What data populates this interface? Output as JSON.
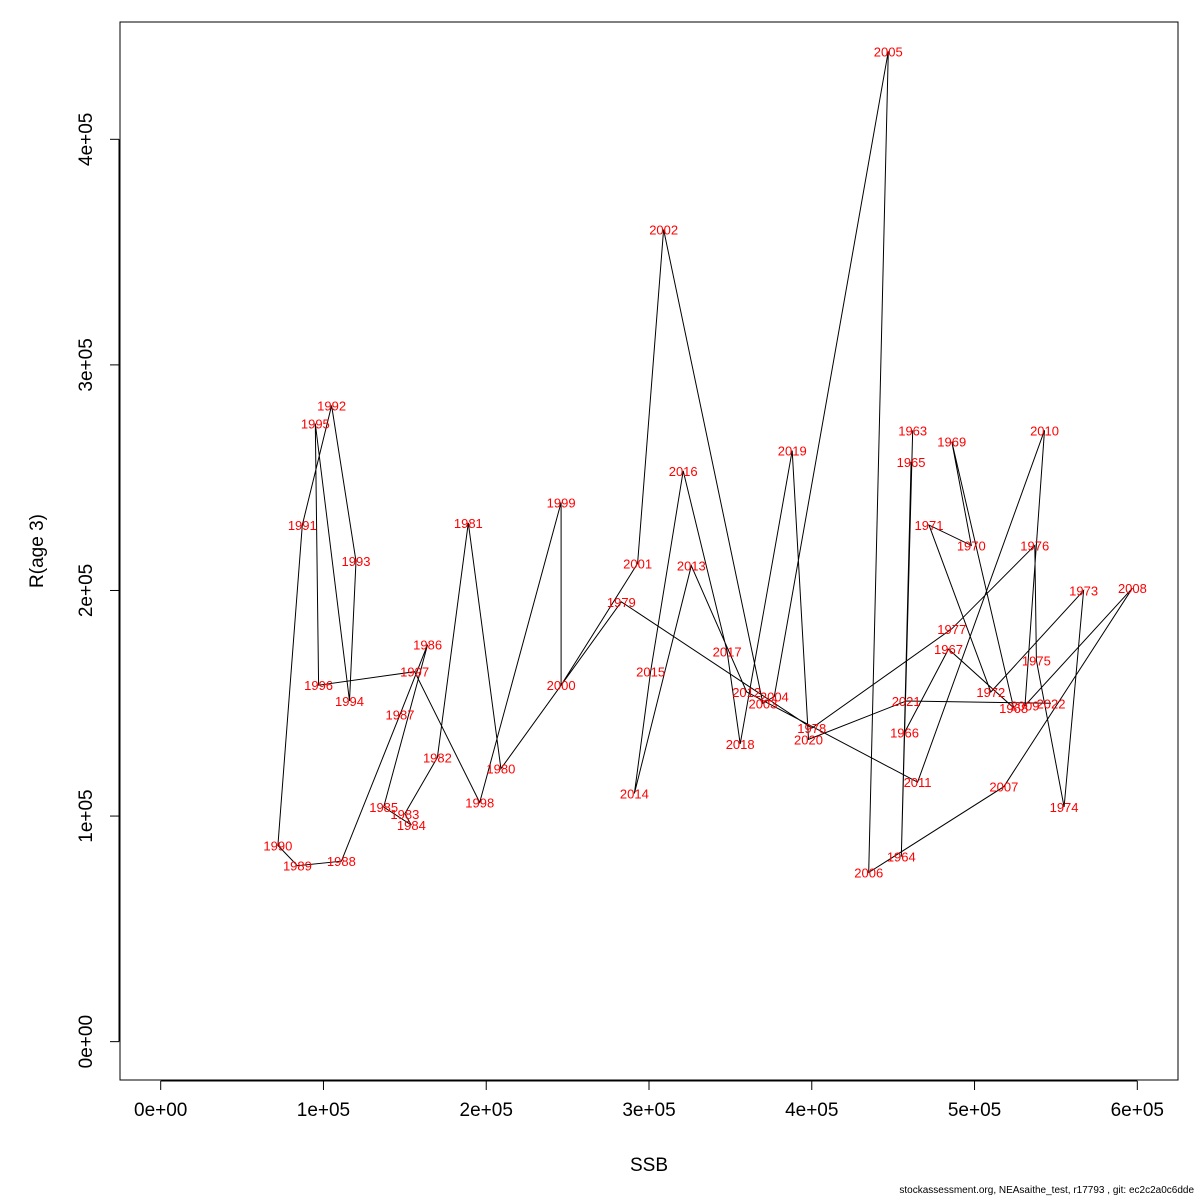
{
  "chart_data": {
    "type": "line",
    "xlabel": "SSB",
    "ylabel": "R(age 3)",
    "xlim": [
      -25000,
      625000
    ],
    "ylim": [
      -17000,
      452000
    ],
    "x_ticks": [
      0,
      100000,
      200000,
      300000,
      400000,
      500000,
      600000
    ],
    "x_tick_labels": [
      "0e+00",
      "1e+05",
      "2e+05",
      "3e+05",
      "4e+05",
      "5e+05",
      "6e+05"
    ],
    "y_ticks": [
      0,
      100000,
      200000,
      300000,
      400000
    ],
    "y_tick_labels": [
      "0e+00",
      "1e+05",
      "2e+05",
      "3e+05",
      "4e+05"
    ],
    "grid": false,
    "line_color": "#000000",
    "label_color": "#ff0000",
    "points": [
      {
        "year": "1963",
        "ssb": 462000,
        "r": 271000
      },
      {
        "year": "1964",
        "ssb": 455000,
        "r": 82000
      },
      {
        "year": "1965",
        "ssb": 461000,
        "r": 257000
      },
      {
        "year": "1966",
        "ssb": 457000,
        "r": 137000
      },
      {
        "year": "1967",
        "ssb": 484000,
        "r": 174000
      },
      {
        "year": "1968",
        "ssb": 524000,
        "r": 148000
      },
      {
        "year": "1969",
        "ssb": 486000,
        "r": 266000
      },
      {
        "year": "1970",
        "ssb": 498000,
        "r": 220000
      },
      {
        "year": "1971",
        "ssb": 472000,
        "r": 229000
      },
      {
        "year": "1972",
        "ssb": 510000,
        "r": 155000
      },
      {
        "year": "1973",
        "ssb": 567000,
        "r": 200000
      },
      {
        "year": "1974",
        "ssb": 555000,
        "r": 104000
      },
      {
        "year": "1975",
        "ssb": 538000,
        "r": 169000
      },
      {
        "year": "1976",
        "ssb": 537000,
        "r": 220000
      },
      {
        "year": "1977",
        "ssb": 486000,
        "r": 183000
      },
      {
        "year": "1978",
        "ssb": 400000,
        "r": 139000
      },
      {
        "year": "1979",
        "ssb": 283000,
        "r": 195000
      },
      {
        "year": "1980",
        "ssb": 209000,
        "r": 121000
      },
      {
        "year": "1981",
        "ssb": 189000,
        "r": 230000
      },
      {
        "year": "1982",
        "ssb": 170000,
        "r": 126000
      },
      {
        "year": "1983",
        "ssb": 150000,
        "r": 101000
      },
      {
        "year": "1984",
        "ssb": 154000,
        "r": 96000
      },
      {
        "year": "1985",
        "ssb": 137000,
        "r": 104000
      },
      {
        "year": "1986",
        "ssb": 164000,
        "r": 176000
      },
      {
        "year": "1987",
        "ssb": 147000,
        "r": 145000
      },
      {
        "year": "1988",
        "ssb": 111000,
        "r": 80000
      },
      {
        "year": "1989",
        "ssb": 84000,
        "r": 78000
      },
      {
        "year": "1990",
        "ssb": 72000,
        "r": 87000
      },
      {
        "year": "1991",
        "ssb": 87000,
        "r": 229000
      },
      {
        "year": "1992",
        "ssb": 105000,
        "r": 282000
      },
      {
        "year": "1993",
        "ssb": 120000,
        "r": 213000
      },
      {
        "year": "1994",
        "ssb": 116000,
        "r": 151000
      },
      {
        "year": "1995",
        "ssb": 95000,
        "r": 274000
      },
      {
        "year": "1996",
        "ssb": 97000,
        "r": 158000
      },
      {
        "year": "1997",
        "ssb": 156000,
        "r": 164000
      },
      {
        "year": "1998",
        "ssb": 196000,
        "r": 106000
      },
      {
        "year": "1999",
        "ssb": 246000,
        "r": 239000
      },
      {
        "year": "2000",
        "ssb": 246000,
        "r": 158000
      },
      {
        "year": "2001",
        "ssb": 293000,
        "r": 212000
      },
      {
        "year": "2002",
        "ssb": 309000,
        "r": 360000
      },
      {
        "year": "2003",
        "ssb": 370000,
        "r": 150000
      },
      {
        "year": "2004",
        "ssb": 377000,
        "r": 153000
      },
      {
        "year": "2005",
        "ssb": 447000,
        "r": 439000
      },
      {
        "year": "2006",
        "ssb": 435000,
        "r": 75000
      },
      {
        "year": "2007",
        "ssb": 518000,
        "r": 113000
      },
      {
        "year": "2008",
        "ssb": 597000,
        "r": 201000
      },
      {
        "year": "2009",
        "ssb": 531000,
        "r": 149000
      },
      {
        "year": "2010",
        "ssb": 543000,
        "r": 271000
      },
      {
        "year": "2011",
        "ssb": 465000,
        "r": 115000
      },
      {
        "year": "2012",
        "ssb": 360000,
        "r": 155000
      },
      {
        "year": "2013",
        "ssb": 326000,
        "r": 211000
      },
      {
        "year": "2014",
        "ssb": 291000,
        "r": 110000
      },
      {
        "year": "2015",
        "ssb": 301000,
        "r": 164000
      },
      {
        "year": "2016",
        "ssb": 321000,
        "r": 253000
      },
      {
        "year": "2017",
        "ssb": 348000,
        "r": 173000
      },
      {
        "year": "2018",
        "ssb": 356000,
        "r": 132000
      },
      {
        "year": "2019",
        "ssb": 388000,
        "r": 262000
      },
      {
        "year": "2020",
        "ssb": 398000,
        "r": 134000
      },
      {
        "year": "2021",
        "ssb": 458000,
        "r": 151000
      },
      {
        "year": "2022",
        "ssb": 547000,
        "r": 150000
      }
    ]
  },
  "footer_text": "stockassessment.org, NEAsaithe_test, r17793 , git: ec2c2a0c6dde"
}
